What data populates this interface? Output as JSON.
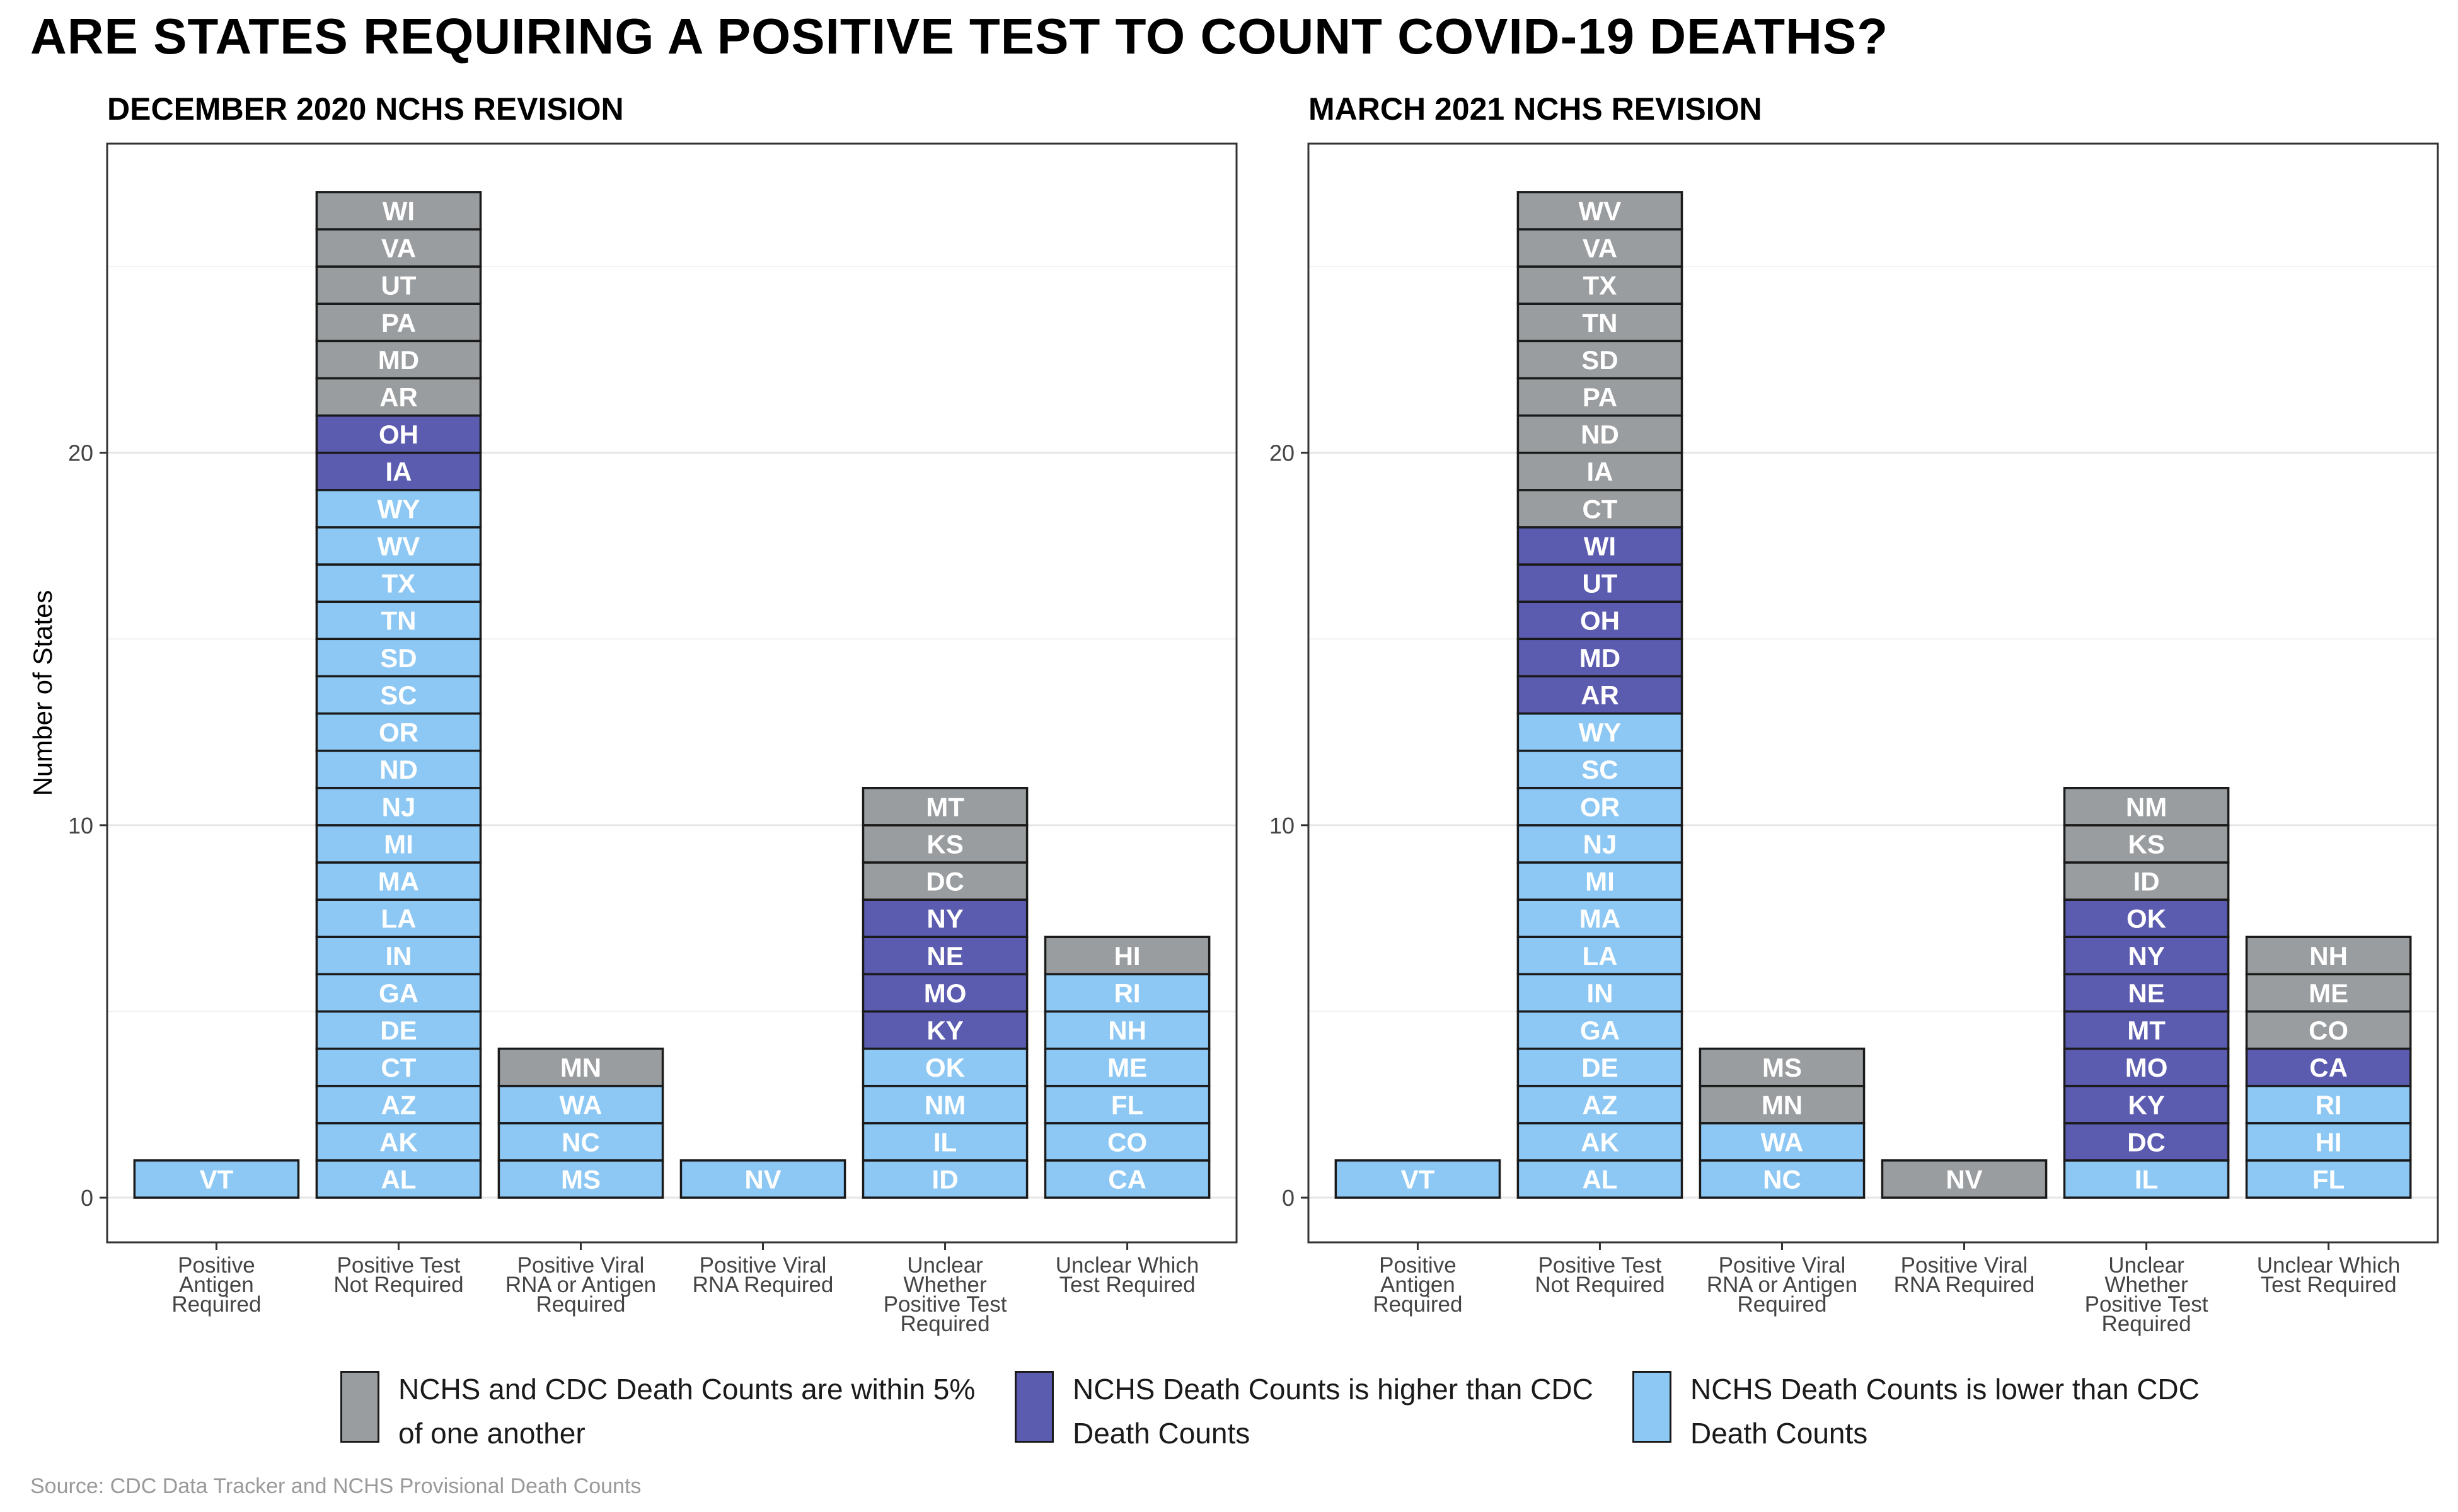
{
  "title": "ARE STATES REQUIRING A POSITIVE TEST TO COUNT COVID-19 DEATHS?",
  "ylabel": "Number of States",
  "source": "Source: CDC Data Tracker and NCHS Provisional Death Counts",
  "colors": {
    "gray": "#999d9f",
    "purple": "#5b5bb0",
    "blue": "#8dc8f4"
  },
  "legend": [
    {
      "color_key": "gray",
      "label": "NCHS and CDC Death Counts are within 5%\nof one another"
    },
    {
      "color_key": "purple",
      "label": "NCHS Death Counts is higher than CDC\nDeath Counts"
    },
    {
      "color_key": "blue",
      "label": "NCHS Death Counts is lower than CDC\nDeath Counts"
    }
  ],
  "chart_data": [
    {
      "type": "bar",
      "subtitle": "DECEMBER 2020 NCHS REVISION",
      "ylabel": "Number of States",
      "categories": [
        "Positive\nAntigen\nRequired",
        "Positive Test\nNot Required",
        "Positive Viral\nRNA or Antigen\nRequired",
        "Positive Viral\nRNA Required",
        "Unclear\nWhether\nPositive Test\nRequired",
        "Unclear Which\nTest Required"
      ],
      "yticks": [
        0,
        10,
        20
      ],
      "ylim": [
        -1.2,
        28.3
      ],
      "grid": true,
      "stacks": [
        [
          {
            "state": "VT",
            "status": "blue"
          }
        ],
        [
          {
            "state": "AL",
            "status": "blue"
          },
          {
            "state": "AK",
            "status": "blue"
          },
          {
            "state": "AZ",
            "status": "blue"
          },
          {
            "state": "CT",
            "status": "blue"
          },
          {
            "state": "DE",
            "status": "blue"
          },
          {
            "state": "GA",
            "status": "blue"
          },
          {
            "state": "IN",
            "status": "blue"
          },
          {
            "state": "LA",
            "status": "blue"
          },
          {
            "state": "MA",
            "status": "blue"
          },
          {
            "state": "MI",
            "status": "blue"
          },
          {
            "state": "NJ",
            "status": "blue"
          },
          {
            "state": "ND",
            "status": "blue"
          },
          {
            "state": "OR",
            "status": "blue"
          },
          {
            "state": "SC",
            "status": "blue"
          },
          {
            "state": "SD",
            "status": "blue"
          },
          {
            "state": "TN",
            "status": "blue"
          },
          {
            "state": "TX",
            "status": "blue"
          },
          {
            "state": "WV",
            "status": "blue"
          },
          {
            "state": "WY",
            "status": "blue"
          },
          {
            "state": "IA",
            "status": "purple"
          },
          {
            "state": "OH",
            "status": "purple"
          },
          {
            "state": "AR",
            "status": "gray"
          },
          {
            "state": "MD",
            "status": "gray"
          },
          {
            "state": "PA",
            "status": "gray"
          },
          {
            "state": "UT",
            "status": "gray"
          },
          {
            "state": "VA",
            "status": "gray"
          },
          {
            "state": "WI",
            "status": "gray"
          }
        ],
        [
          {
            "state": "MS",
            "status": "blue"
          },
          {
            "state": "NC",
            "status": "blue"
          },
          {
            "state": "WA",
            "status": "blue"
          },
          {
            "state": "MN",
            "status": "gray"
          }
        ],
        [
          {
            "state": "NV",
            "status": "blue"
          }
        ],
        [
          {
            "state": "ID",
            "status": "blue"
          },
          {
            "state": "IL",
            "status": "blue"
          },
          {
            "state": "NM",
            "status": "blue"
          },
          {
            "state": "OK",
            "status": "blue"
          },
          {
            "state": "KY",
            "status": "purple"
          },
          {
            "state": "MO",
            "status": "purple"
          },
          {
            "state": "NE",
            "status": "purple"
          },
          {
            "state": "NY",
            "status": "purple"
          },
          {
            "state": "DC",
            "status": "gray"
          },
          {
            "state": "KS",
            "status": "gray"
          },
          {
            "state": "MT",
            "status": "gray"
          }
        ],
        [
          {
            "state": "CA",
            "status": "blue"
          },
          {
            "state": "CO",
            "status": "blue"
          },
          {
            "state": "FL",
            "status": "blue"
          },
          {
            "state": "ME",
            "status": "blue"
          },
          {
            "state": "NH",
            "status": "blue"
          },
          {
            "state": "RI",
            "status": "blue"
          },
          {
            "state": "HI",
            "status": "gray"
          }
        ]
      ]
    },
    {
      "type": "bar",
      "subtitle": "MARCH 2021 NCHS REVISION",
      "categories": [
        "Positive\nAntigen\nRequired",
        "Positive Test\nNot Required",
        "Positive Viral\nRNA or Antigen\nRequired",
        "Positive Viral\nRNA Required",
        "Unclear\nWhether\nPositive Test\nRequired",
        "Unclear Which\nTest Required"
      ],
      "yticks": [
        0,
        10,
        20
      ],
      "ylim": [
        -1.2,
        28.3
      ],
      "grid": true,
      "stacks": [
        [
          {
            "state": "VT",
            "status": "blue"
          }
        ],
        [
          {
            "state": "AL",
            "status": "blue"
          },
          {
            "state": "AK",
            "status": "blue"
          },
          {
            "state": "AZ",
            "status": "blue"
          },
          {
            "state": "DE",
            "status": "blue"
          },
          {
            "state": "GA",
            "status": "blue"
          },
          {
            "state": "IN",
            "status": "blue"
          },
          {
            "state": "LA",
            "status": "blue"
          },
          {
            "state": "MA",
            "status": "blue"
          },
          {
            "state": "MI",
            "status": "blue"
          },
          {
            "state": "NJ",
            "status": "blue"
          },
          {
            "state": "OR",
            "status": "blue"
          },
          {
            "state": "SC",
            "status": "blue"
          },
          {
            "state": "WY",
            "status": "blue"
          },
          {
            "state": "AR",
            "status": "purple"
          },
          {
            "state": "MD",
            "status": "purple"
          },
          {
            "state": "OH",
            "status": "purple"
          },
          {
            "state": "UT",
            "status": "purple"
          },
          {
            "state": "WI",
            "status": "purple"
          },
          {
            "state": "CT",
            "status": "gray"
          },
          {
            "state": "IA",
            "status": "gray"
          },
          {
            "state": "ND",
            "status": "gray"
          },
          {
            "state": "PA",
            "status": "gray"
          },
          {
            "state": "SD",
            "status": "gray"
          },
          {
            "state": "TN",
            "status": "gray"
          },
          {
            "state": "TX",
            "status": "gray"
          },
          {
            "state": "VA",
            "status": "gray"
          },
          {
            "state": "WV",
            "status": "gray"
          }
        ],
        [
          {
            "state": "NC",
            "status": "blue"
          },
          {
            "state": "WA",
            "status": "blue"
          },
          {
            "state": "MN",
            "status": "gray"
          },
          {
            "state": "MS",
            "status": "gray"
          }
        ],
        [
          {
            "state": "NV",
            "status": "gray"
          }
        ],
        [
          {
            "state": "IL",
            "status": "blue"
          },
          {
            "state": "DC",
            "status": "purple"
          },
          {
            "state": "KY",
            "status": "purple"
          },
          {
            "state": "MO",
            "status": "purple"
          },
          {
            "state": "MT",
            "status": "purple"
          },
          {
            "state": "NE",
            "status": "purple"
          },
          {
            "state": "NY",
            "status": "purple"
          },
          {
            "state": "OK",
            "status": "purple"
          },
          {
            "state": "ID",
            "status": "gray"
          },
          {
            "state": "KS",
            "status": "gray"
          },
          {
            "state": "NM",
            "status": "gray"
          }
        ],
        [
          {
            "state": "FL",
            "status": "blue"
          },
          {
            "state": "HI",
            "status": "blue"
          },
          {
            "state": "RI",
            "status": "blue"
          },
          {
            "state": "CA",
            "status": "purple"
          },
          {
            "state": "CO",
            "status": "gray"
          },
          {
            "state": "ME",
            "status": "gray"
          },
          {
            "state": "NH",
            "status": "gray"
          }
        ]
      ]
    }
  ]
}
